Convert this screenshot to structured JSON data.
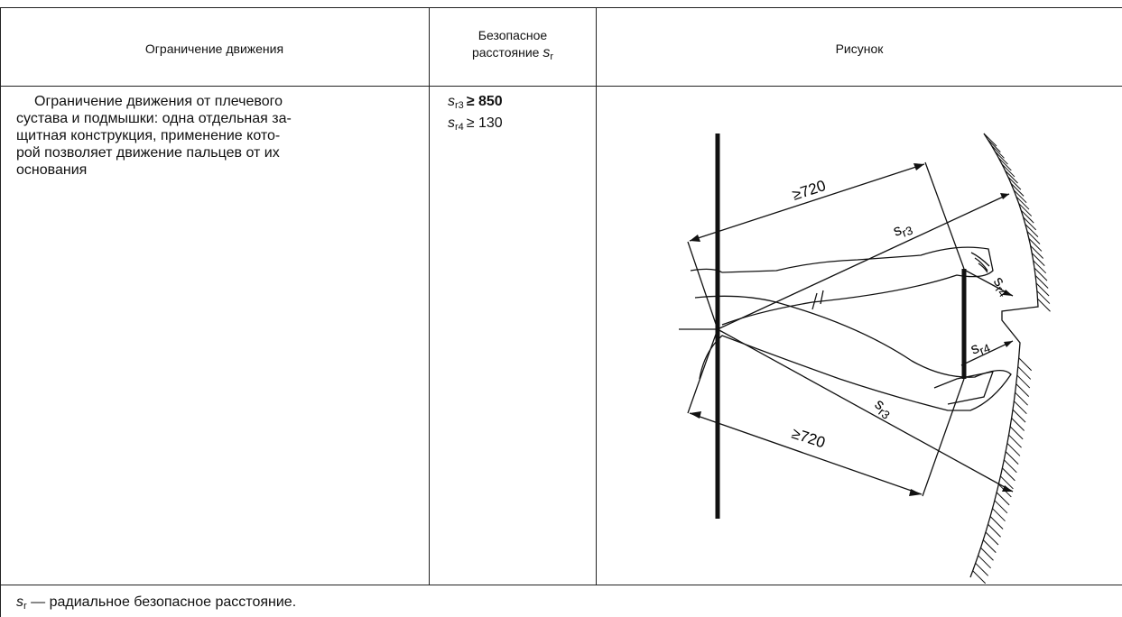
{
  "table": {
    "header": [
      "Ограничение движения",
      {
        "line1": "Безопасное",
        "line2": "расстояние",
        "symbol": "s",
        "subscript": "r"
      },
      "Рисунок"
    ],
    "rows": [
      [
        {
          "lines": [
            "Ограничение движения от плечевого",
            "сустава и подмышки: одна отдельная за-",
            "щитная конструкция, применение кото-",
            "рой позволяет движение пальцев от их",
            "основания"
          ]
        },
        [
          {
            "symbol": "s",
            "subscript": "r3",
            "value": "≥ 850"
          },
          {
            "symbol": "s",
            "subscript": "r4",
            "value": "≥ 130"
          }
        ],
        {
          "labels": [
            {
              "text": "≥720"
            },
            {
              "symbol": "s",
              "subscript": "r3"
            },
            {
              "symbol": "s",
              "subscript": "r4"
            },
            {
              "symbol": "s",
              "subscript": "r4"
            },
            {
              "symbol": "s",
              "subscript": "r3"
            },
            {
              "text": "≥720"
            }
          ]
        }
      ]
    ],
    "footer": {
      "symbol": "s",
      "subscript": "r",
      "text": " — радиальное безопасное расстояние."
    }
  }
}
